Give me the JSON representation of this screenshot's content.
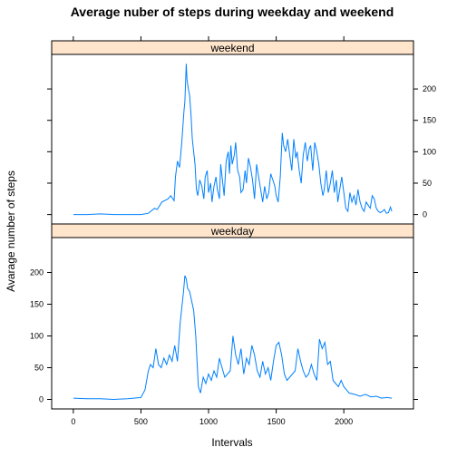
{
  "chart_data": {
    "type": "line",
    "title": "Average nuber of steps during weekday and weekend",
    "xlabel": "Intervals",
    "ylabel": "Avarage number of steps",
    "xlim": [
      -160,
      2515
    ],
    "ylim": [
      -15,
      255
    ],
    "x_ticks": [
      0,
      500,
      1000,
      1500,
      2000
    ],
    "y_ticks": [
      0,
      50,
      100,
      150,
      200
    ],
    "line_color": "#0080ff",
    "strip_color": "#ffe5cc",
    "panels": [
      {
        "name": "weekend",
        "x": [
          0,
          100,
          200,
          300,
          400,
          500,
          530,
          555,
          600,
          620,
          655,
          700,
          720,
          745,
          755,
          770,
          785,
          800,
          810,
          818,
          825,
          835,
          840,
          850,
          860,
          870,
          880,
          890,
          900,
          910,
          920,
          935,
          950,
          965,
          975,
          990,
          1000,
          1015,
          1025,
          1040,
          1055,
          1065,
          1080,
          1090,
          1100,
          1115,
          1130,
          1145,
          1155,
          1165,
          1175,
          1190,
          1200,
          1215,
          1230,
          1240,
          1255,
          1270,
          1280,
          1295,
          1310,
          1325,
          1340,
          1355,
          1370,
          1385,
          1400,
          1415,
          1430,
          1445,
          1460,
          1475,
          1490,
          1500,
          1515,
          1530,
          1545,
          1555,
          1570,
          1585,
          1600,
          1615,
          1630,
          1645,
          1655,
          1670,
          1685,
          1700,
          1715,
          1730,
          1745,
          1755,
          1770,
          1785,
          1800,
          1815,
          1830,
          1845,
          1855,
          1870,
          1885,
          1900,
          1915,
          1930,
          1945,
          1955,
          1970,
          1985,
          2000,
          2015,
          2030,
          2045,
          2060,
          2075,
          2090,
          2105,
          2120,
          2135,
          2150,
          2165,
          2180,
          2195,
          2210,
          2225,
          2240,
          2255,
          2270,
          2285,
          2300,
          2315,
          2330,
          2345,
          2355
        ],
        "y": [
          0,
          0,
          1,
          0,
          0,
          0,
          1,
          2,
          10,
          8,
          20,
          25,
          30,
          22,
          60,
          85,
          75,
          110,
          140,
          165,
          180,
          240,
          215,
          200,
          190,
          160,
          120,
          100,
          80,
          40,
          30,
          55,
          45,
          25,
          60,
          70,
          35,
          50,
          20,
          45,
          60,
          40,
          25,
          80,
          60,
          30,
          85,
          100,
          65,
          110,
          80,
          95,
          115,
          70,
          60,
          35,
          40,
          70,
          50,
          90,
          75,
          55,
          25,
          80,
          60,
          40,
          20,
          45,
          25,
          35,
          65,
          55,
          45,
          30,
          20,
          60,
          130,
          110,
          100,
          120,
          95,
          70,
          120,
          90,
          100,
          70,
          50,
          95,
          115,
          85,
          105,
          110,
          70,
          115,
          100,
          80,
          50,
          30,
          40,
          70,
          35,
          50,
          70,
          35,
          55,
          20,
          40,
          60,
          35,
          10,
          5,
          35,
          20,
          30,
          15,
          40,
          20,
          10,
          5,
          20,
          15,
          10,
          30,
          25,
          10,
          5,
          3,
          5,
          8,
          2,
          3,
          12,
          5
        ],
        "peak_max": 240
      },
      {
        "name": "weekday",
        "x": [
          0,
          100,
          200,
          300,
          400,
          500,
          530,
          555,
          570,
          590,
          610,
          630,
          650,
          670,
          690,
          710,
          730,
          750,
          770,
          790,
          805,
          815,
          825,
          835,
          845,
          860,
          875,
          890,
          905,
          915,
          925,
          940,
          960,
          980,
          1000,
          1020,
          1040,
          1060,
          1080,
          1100,
          1120,
          1140,
          1160,
          1180,
          1200,
          1220,
          1240,
          1260,
          1280,
          1300,
          1320,
          1340,
          1360,
          1380,
          1400,
          1420,
          1440,
          1460,
          1480,
          1500,
          1520,
          1540,
          1560,
          1580,
          1600,
          1620,
          1640,
          1660,
          1680,
          1700,
          1720,
          1740,
          1760,
          1780,
          1800,
          1820,
          1840,
          1860,
          1880,
          1900,
          1920,
          1940,
          1960,
          1980,
          2000,
          2040,
          2080,
          2120,
          2160,
          2200,
          2240,
          2280,
          2320,
          2355
        ],
        "y": [
          2,
          1,
          1,
          0,
          1,
          3,
          15,
          45,
          55,
          50,
          80,
          55,
          50,
          65,
          55,
          70,
          60,
          85,
          60,
          120,
          150,
          170,
          195,
          190,
          175,
          170,
          155,
          140,
          100,
          60,
          20,
          10,
          35,
          25,
          40,
          30,
          45,
          35,
          65,
          50,
          35,
          40,
          45,
          100,
          70,
          55,
          80,
          40,
          65,
          55,
          85,
          70,
          45,
          35,
          60,
          40,
          50,
          30,
          60,
          85,
          90,
          70,
          40,
          30,
          35,
          40,
          45,
          80,
          60,
          45,
          35,
          40,
          55,
          40,
          30,
          95,
          80,
          90,
          55,
          60,
          30,
          25,
          20,
          30,
          20,
          10,
          8,
          5,
          8,
          4,
          5,
          2,
          3,
          2
        ],
        "peak_max": 200
      }
    ]
  }
}
